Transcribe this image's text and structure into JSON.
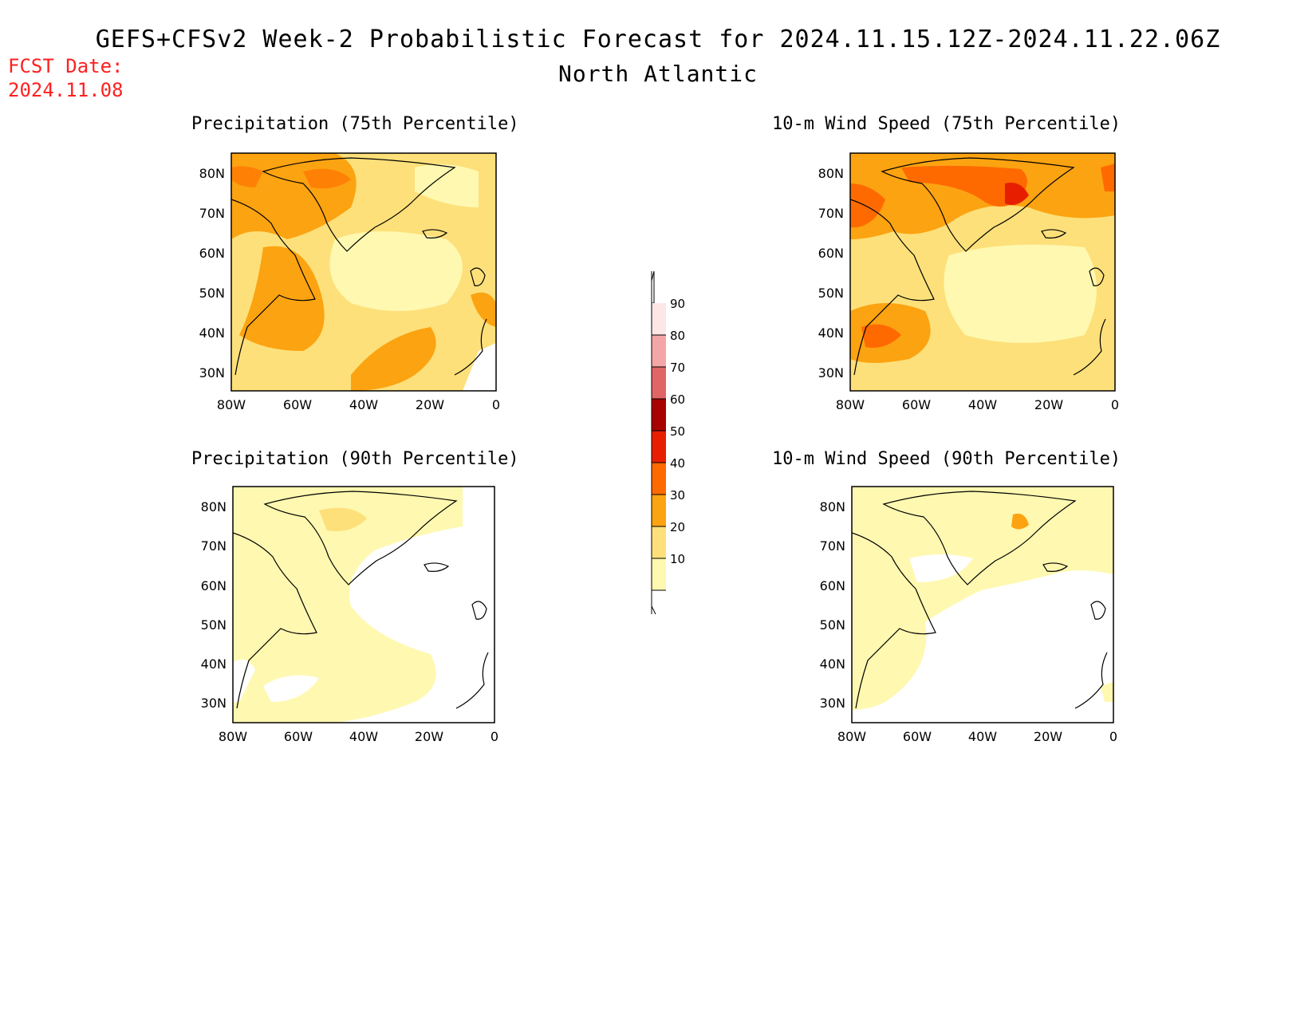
{
  "header": {
    "title": "GEFS+CFSv2 Week-2 Probabilistic Forecast for 2024.11.15.12Z-2024.11.22.06Z",
    "subtitle": "North Atlantic",
    "fcst_label": "FCST Date:",
    "fcst_date": "2024.11.08"
  },
  "panels": [
    {
      "id": "precip75",
      "title": "Precipitation (75th Percentile)",
      "intensity": "high"
    },
    {
      "id": "wind75",
      "title": "10-m Wind Speed (75th Percentile)",
      "intensity": "high"
    },
    {
      "id": "precip90",
      "title": "Precipitation (90th Percentile)",
      "intensity": "low"
    },
    {
      "id": "wind90",
      "title": "10-m Wind Speed (90th Percentile)",
      "intensity": "low"
    }
  ],
  "axes": {
    "lat_labels": [
      "80N",
      "70N",
      "60N",
      "50N",
      "40N",
      "30N"
    ],
    "lon_labels": [
      "80W",
      "60W",
      "40W",
      "20W",
      "0"
    ]
  },
  "colorbar": {
    "levels": [
      "10",
      "20",
      "30",
      "40",
      "50",
      "60",
      "70",
      "80",
      "90"
    ],
    "colors": [
      "#fff8b0",
      "#fde07a",
      "#fca311",
      "#ff6a00",
      "#e81e00",
      "#a90000",
      "#e06666",
      "#f4a6a6",
      "#fde6e6"
    ]
  },
  "colors": {
    "fcst_label": "#ff2020",
    "level10": "#fff8b0",
    "level20": "#fde07a",
    "level30": "#fca311",
    "level40": "#ff6a00",
    "level50": "#e81e00"
  }
}
